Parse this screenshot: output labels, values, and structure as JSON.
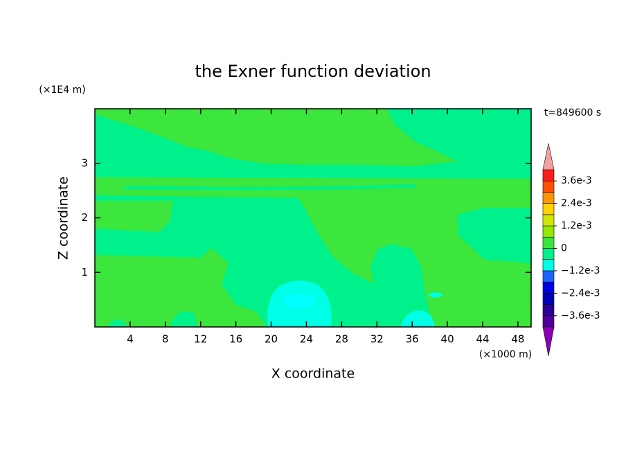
{
  "chart_data": {
    "type": "contour",
    "title": "the Exner function deviation",
    "x_label": "X coordinate",
    "y_label": "Z coordinate",
    "x_unit": "(×1000 m)",
    "y_unit": "(×1E4 m)",
    "time_label": "t=849600 s",
    "xlim": [
      0,
      49.5
    ],
    "ylim": [
      0,
      4
    ],
    "xticks": [
      4,
      8,
      12,
      16,
      20,
      24,
      28,
      32,
      36,
      40,
      44,
      48
    ],
    "yticks": [
      1,
      2,
      3
    ],
    "levels": [
      -0.0036,
      -0.003,
      -0.0024,
      -0.0018,
      -0.0012,
      -0.0006,
      0,
      0.0006,
      0.0012,
      0.0018,
      0.0024,
      0.003,
      0.0036
    ],
    "colors": [
      "#50009a",
      "#2a0096",
      "#0000b4",
      "#0000e6",
      "#1e64ff",
      "#00ffe6",
      "#00f08c",
      "#3ce63c",
      "#96e600",
      "#d2e600",
      "#ffd200",
      "#ff9600",
      "#ff5000",
      "#ff1e1e"
    ],
    "extend_colors": [
      "#8c00b4",
      "#f4a0a0"
    ],
    "colorbar_ticks": [
      {
        "value": 0.0036,
        "label": "3.6e-3"
      },
      {
        "value": 0.0024,
        "label": "2.4e-3"
      },
      {
        "value": 0.0012,
        "label": "1.2e-3"
      },
      0,
      {
        "value": -0.0012,
        "label": "−1.2e-3"
      },
      {
        "value": -0.0024,
        "label": "−2.4e-3"
      },
      {
        "value": -0.0036,
        "label": "−3.6e-3"
      }
    ]
  }
}
